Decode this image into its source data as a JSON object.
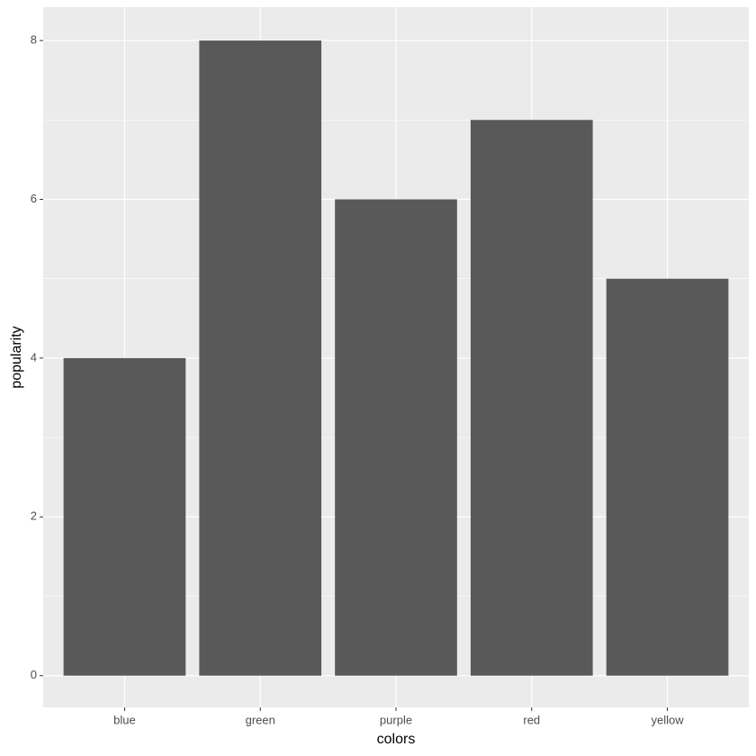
{
  "chart_data": {
    "type": "bar",
    "x_label": "colors",
    "y_label": "popularity",
    "categories": [
      "blue",
      "green",
      "purple",
      "red",
      "yellow"
    ],
    "values": [
      4,
      8,
      6,
      7,
      5
    ],
    "color": "#595959",
    "ylim": [
      -0.4,
      8.42
    ],
    "yticks": [
      0,
      2,
      4,
      6,
      8
    ],
    "grid": true,
    "minor_grid": true
  }
}
